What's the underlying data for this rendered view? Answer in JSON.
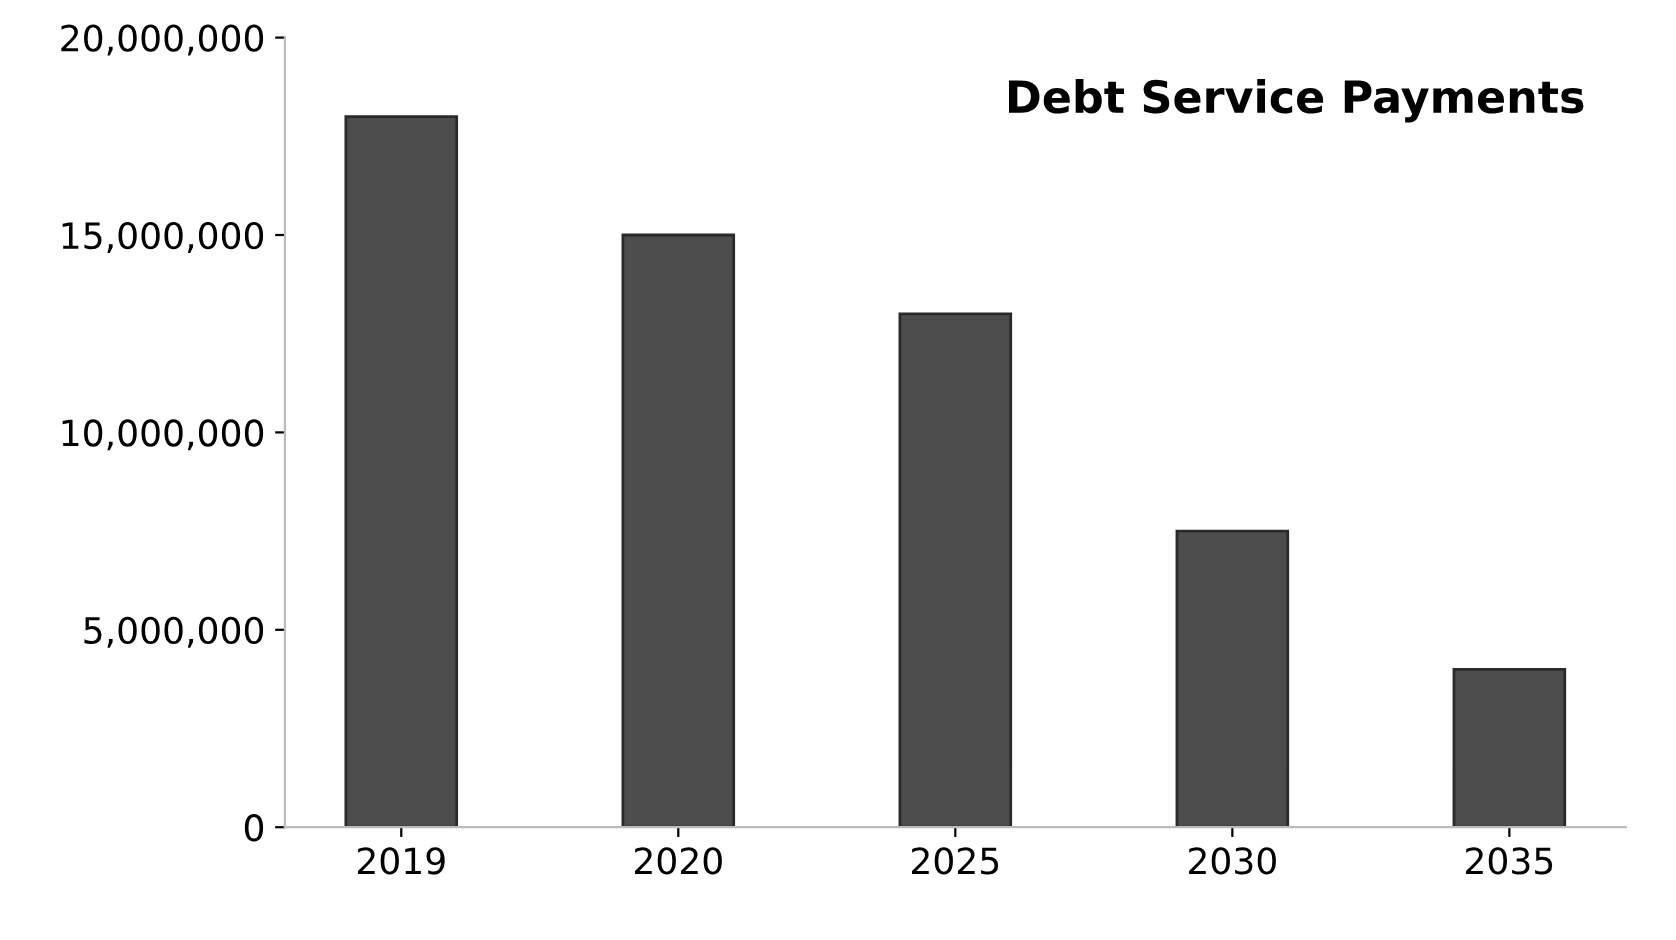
{
  "chart_data": {
    "type": "bar",
    "title": "Debt Service Payments",
    "categories": [
      "2019",
      "2020",
      "2025",
      "2030",
      "2035"
    ],
    "values": [
      18000000,
      15000000,
      13000000,
      7500000,
      4000000
    ],
    "color": "#4d4d4d",
    "ylim": [
      0,
      20000000
    ],
    "yticks": [
      {
        "value": 0,
        "label": "0"
      },
      {
        "value": 5000000,
        "label": "5,000,000"
      },
      {
        "value": 10000000,
        "label": "10,000,000"
      },
      {
        "value": 15000000,
        "label": "15,000,000"
      },
      {
        "value": 20000000,
        "label": "20,000,000"
      }
    ],
    "grid": false,
    "legend": false
  }
}
